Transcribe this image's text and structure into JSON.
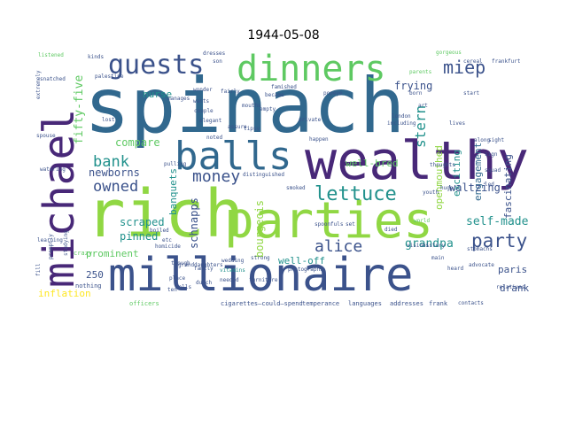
{
  "title": "1944-05-08",
  "colors": {
    "background": "#ffffff",
    "palette": [
      "#440154",
      "#3b528b",
      "#21918c",
      "#5ec962",
      "#fde725",
      "#31688e",
      "#90d743",
      "#482878"
    ]
  },
  "words": [
    "spinach",
    "rich",
    "wealthy",
    "parties",
    "millionaire",
    "michael",
    "balls",
    "dinners",
    "guests",
    "lettuce",
    "miep",
    "party",
    "alice",
    "money",
    "bank",
    "owned",
    "stern",
    "fifty-five",
    "grandpa",
    "self-made",
    "schnapps",
    "bourgeois",
    "exciting",
    "fascinating",
    "engagement",
    "openmouthed",
    "frying",
    "nurse",
    "compare",
    "newborns",
    "scraped",
    "pinned",
    "waltzing",
    "well-bred",
    "paris",
    "drank",
    "prominent",
    "inflation",
    "250",
    "well-off",
    "banquets",
    "cigarettes—could—spend",
    "temperance",
    "languages",
    "addresses",
    "frank",
    "officers",
    "nothing",
    "crazy",
    "wedding",
    "vitamins",
    "needed",
    "homicide",
    "distinguished",
    "smoked",
    "boiled",
    "etc",
    "elegant",
    "tipsy",
    "couple",
    "lost",
    "kinds",
    "palestine",
    "snatched",
    "listened",
    "dresses",
    "son",
    "parents",
    "cereal",
    "frankfurt",
    "gorgeous",
    "including",
    "history",
    "huge",
    "heard",
    "main",
    "advocate",
    "contacts",
    "relatives",
    "youth",
    "world",
    "died",
    "photographs",
    "furniture",
    "dutch",
    "rolls",
    "family",
    "place",
    "ten",
    "though",
    "granddaughters",
    "strong",
    "noted",
    "assure",
    "became",
    "empty",
    "famished",
    "popeye",
    "born",
    "art",
    "london",
    "lives",
    "along",
    "sight",
    "sign",
    "led",
    "thoughts",
    "visions",
    "watering",
    "learning",
    "fill",
    "spouse",
    "extremely",
    "promptly",
    "studying",
    "pulling",
    "manages",
    "wonder",
    "wants",
    "fairly",
    "mouths",
    "private",
    "happen",
    "squad",
    "start",
    "spoonfuls",
    "set",
    "stomachs"
  ]
}
